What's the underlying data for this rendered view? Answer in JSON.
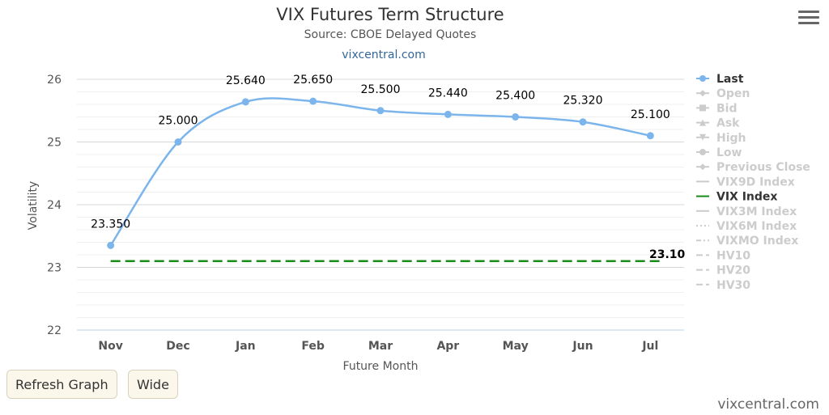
{
  "title": "VIX Futures Term Structure",
  "subtitle": "Source: CBOE Delayed Quotes",
  "link": "vixcentral.com",
  "credit": "vixcentral.com",
  "buttons": {
    "refresh": "Refresh Graph",
    "wide": "Wide"
  },
  "menu_icon": "hamburger-menu-icon",
  "chart_data": {
    "type": "line",
    "xlabel": "Future Month",
    "ylabel": "Volatility",
    "ylim": [
      22,
      26
    ],
    "yticks": [
      22,
      23,
      24,
      25,
      26
    ],
    "grid": true,
    "legend_position": "right",
    "categories": [
      "Nov",
      "Dec",
      "Jan",
      "Feb",
      "Mar",
      "Apr",
      "May",
      "Jun",
      "Jul"
    ],
    "series": [
      {
        "name": "Last",
        "values": [
          23.35,
          25.0,
          25.64,
          25.65,
          25.5,
          25.44,
          25.4,
          25.32,
          25.1
        ],
        "labels": [
          "23.350",
          "25.000",
          "25.640",
          "25.650",
          "25.500",
          "25.440",
          "25.400",
          "25.320",
          "25.100"
        ],
        "color": "#7cb5ec",
        "visible": true
      },
      {
        "name": "VIX Index",
        "value": 23.1,
        "label": "23.10",
        "color": "#1a8c1a",
        "visible": true,
        "style": "dashed"
      }
    ],
    "legend": [
      {
        "name": "Last",
        "active": true,
        "symbol": "circle",
        "color": "#7cb5ec"
      },
      {
        "name": "Open",
        "active": false,
        "symbol": "diamond"
      },
      {
        "name": "Bid",
        "active": false,
        "symbol": "square"
      },
      {
        "name": "Ask",
        "active": false,
        "symbol": "triangle"
      },
      {
        "name": "High",
        "active": false,
        "symbol": "triangle-down"
      },
      {
        "name": "Low",
        "active": false,
        "symbol": "circle"
      },
      {
        "name": "Previous Close",
        "active": false,
        "symbol": "diamond"
      },
      {
        "name": "VIX9D Index",
        "active": false,
        "symbol": "solid"
      },
      {
        "name": "VIX Index",
        "active": true,
        "symbol": "solid",
        "color": "#1a8c1a"
      },
      {
        "name": "VIX3M Index",
        "active": false,
        "symbol": "solid"
      },
      {
        "name": "VIX6M Index",
        "active": false,
        "symbol": "dotted"
      },
      {
        "name": "VIXMO Index",
        "active": false,
        "symbol": "dashdot"
      },
      {
        "name": "HV10",
        "active": false,
        "symbol": "longdash"
      },
      {
        "name": "HV20",
        "active": false,
        "symbol": "longdash"
      },
      {
        "name": "HV30",
        "active": false,
        "symbol": "longdash"
      }
    ]
  }
}
